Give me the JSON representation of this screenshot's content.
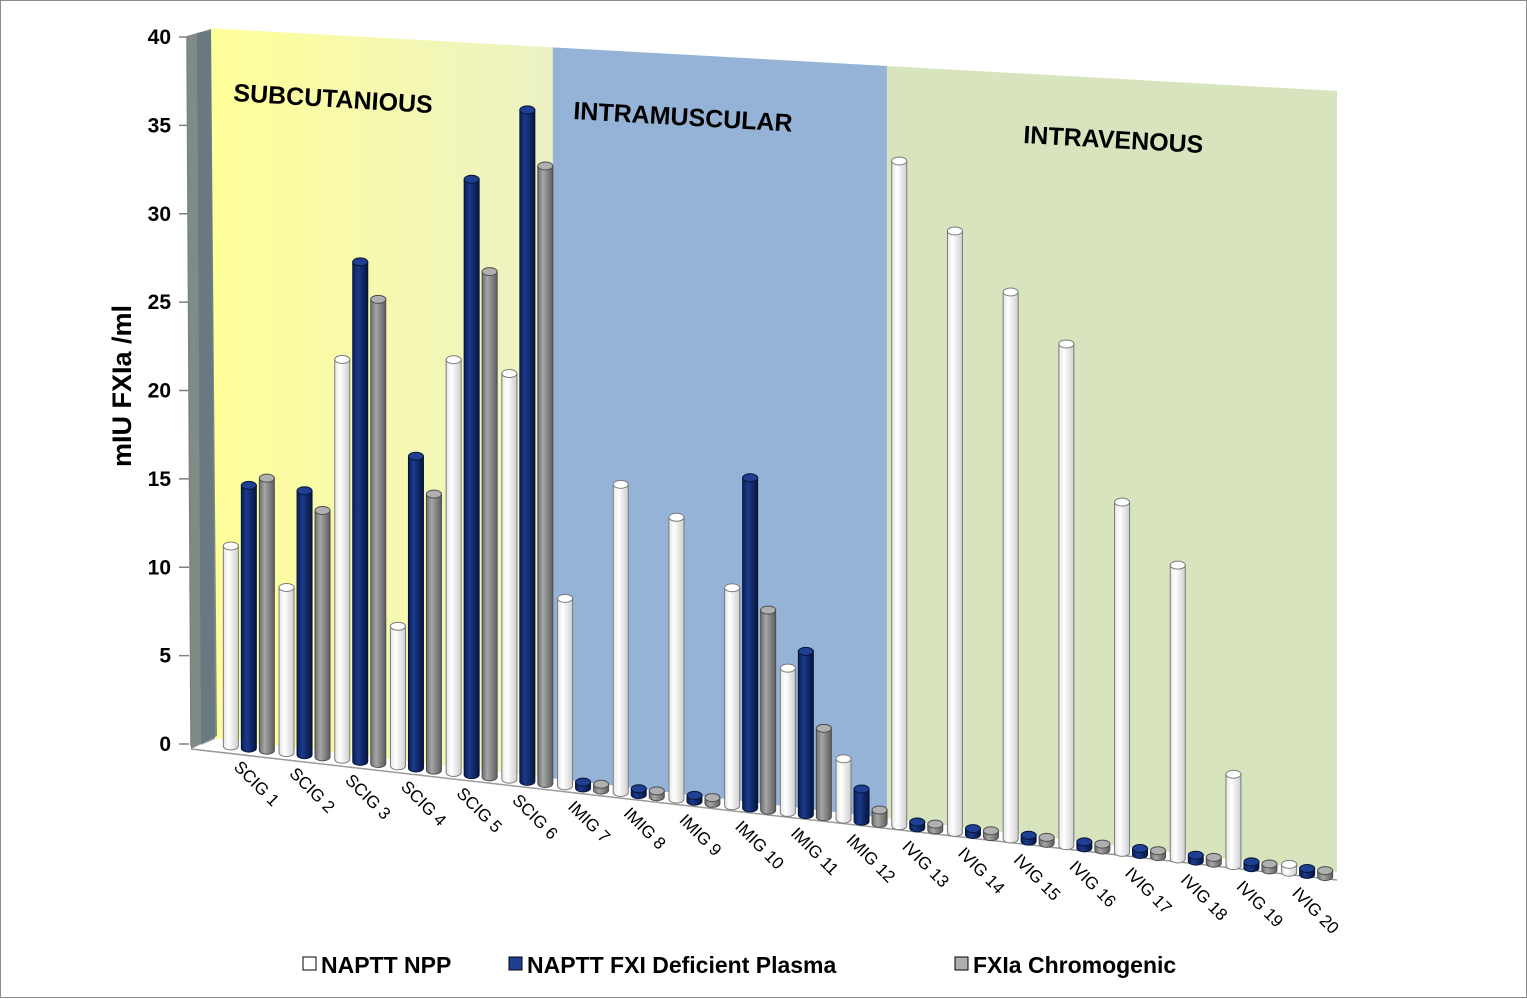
{
  "chart_data": {
    "type": "bar",
    "subtype": "3d-cylinder-clustered",
    "ylabel": "mIU FXIa /ml",
    "xlabel": "",
    "ylim": [
      0,
      40
    ],
    "yticks": [
      0,
      5,
      10,
      15,
      20,
      25,
      30,
      35,
      40
    ],
    "grid": false,
    "legend_position": "bottom",
    "categories": [
      "SCIG 1",
      "SCIG 2",
      "SCIG 3",
      "SCIG 4",
      "SCIG 5",
      "SCIG 6",
      "IMIG 7",
      "IMIG 8",
      "IMIG 9",
      "IMIG 10",
      "IMIG 11",
      "IMIG 12",
      "IVIG 13",
      "IVIG 14",
      "IVIG 15",
      "IVIG 16",
      "IVIG 17",
      "IVIG 18",
      "IVIG 19",
      "IVIG 20"
    ],
    "series": [
      {
        "name": "NAPTT NPP",
        "color": "#ffffff",
        "values": [
          11.0,
          9.0,
          22.0,
          7.5,
          22.5,
          22.0,
          10.0,
          16.5,
          15.0,
          11.5,
          7.5,
          3.0,
          35.0,
          31.5,
          28.5,
          26.0,
          18.0,
          15.0,
          4.5,
          0.2
        ]
      },
      {
        "name": "NAPTT FXI Deficient Plasma",
        "color": "#0f2a6e",
        "values": [
          14.5,
          14.5,
          27.5,
          17.0,
          32.5,
          36.5,
          0.1,
          0.1,
          0.1,
          17.5,
          8.5,
          1.5,
          0.1,
          0.1,
          0.1,
          0.1,
          0.1,
          0.1,
          0.1,
          0.1
        ]
      },
      {
        "name": "FXIa Chromogenic",
        "color": "#8c8c8c",
        "values": [
          15.0,
          13.5,
          25.5,
          15.0,
          27.5,
          33.5,
          0.1,
          0.1,
          0.1,
          10.5,
          4.5,
          0.5,
          0.1,
          0.1,
          0.1,
          0.1,
          0.1,
          0.1,
          0.1,
          0.1
        ]
      }
    ],
    "regions": [
      {
        "label": "SUBCUTANIOUS",
        "from": 0,
        "to": 5,
        "color": "#ffff99"
      },
      {
        "label": "INTRAMUSCULAR",
        "from": 6,
        "to": 11,
        "color": "#95b3d7"
      },
      {
        "label": "INTRAVENOUS",
        "from": 12,
        "to": 19,
        "color": "#d7e4bd"
      }
    ]
  }
}
